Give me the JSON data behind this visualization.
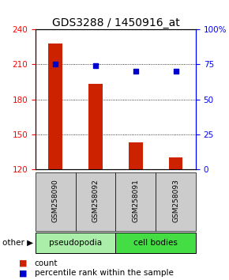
{
  "title": "GDS3288 / 1450916_at",
  "samples": [
    "GSM258090",
    "GSM258092",
    "GSM258091",
    "GSM258093"
  ],
  "bar_values": [
    228,
    193,
    143,
    130
  ],
  "percentile_values": [
    75,
    74,
    70,
    70
  ],
  "ylim_left": [
    120,
    240
  ],
  "ylim_right": [
    0,
    100
  ],
  "yticks_left": [
    120,
    150,
    180,
    210,
    240
  ],
  "yticks_right": [
    0,
    25,
    50,
    75,
    100
  ],
  "bar_color": "#cc2200",
  "dot_color": "#0000cc",
  "bar_width": 0.35,
  "groups": [
    {
      "label": "pseudopodia",
      "color": "#aaeeaa",
      "cols": [
        0,
        1
      ]
    },
    {
      "label": "cell bodies",
      "color": "#44dd44",
      "cols": [
        2,
        3
      ]
    }
  ],
  "other_label": "other",
  "background_color": "#ffffff",
  "label_area_color": "#cccccc",
  "title_fontsize": 10,
  "tick_fontsize": 7.5,
  "legend_fontsize": 7.5,
  "sample_fontsize": 6.5
}
